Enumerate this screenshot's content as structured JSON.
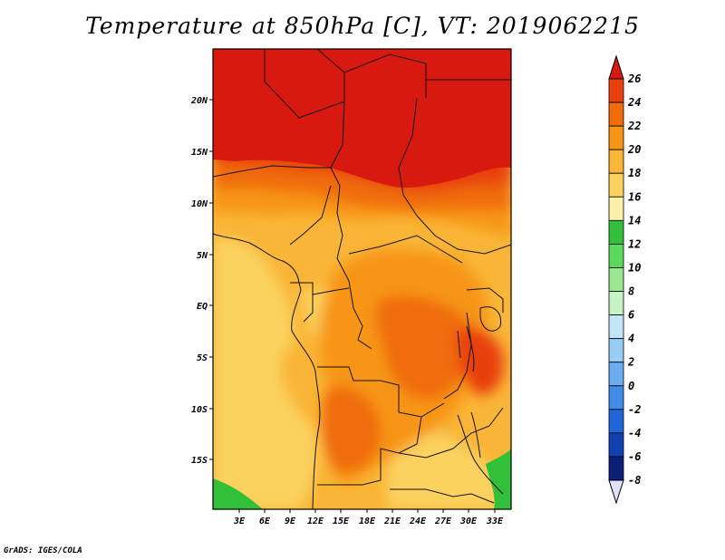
{
  "title": "Temperature at 850hPa [C], VT: 2019062215",
  "credit": "GrADS: IGES/COLA",
  "map": {
    "lon_range": [
      0,
      35
    ],
    "lat_range": [
      -20,
      25
    ],
    "lat_ticks": [
      "20N",
      "15N",
      "10N",
      "5N",
      "EQ",
      "5S",
      "10S",
      "15S"
    ],
    "lon_ticks": [
      "3E",
      "6E",
      "9E",
      "12E",
      "15E",
      "18E",
      "21E",
      "24E",
      "27E",
      "30E",
      "33E"
    ]
  },
  "colorbar": {
    "labels": [
      "26",
      "24",
      "22",
      "20",
      "18",
      "16",
      "14",
      "12",
      "10",
      "8",
      "6",
      "4",
      "2",
      "0",
      "-2",
      "-4",
      "-6",
      "-8"
    ],
    "colors": [
      "#d7190f",
      "#e8400c",
      "#f06c0c",
      "#f79514",
      "#f9b537",
      "#fbd25f",
      "#fdf0a8",
      "#32c03a",
      "#5bd95b",
      "#9ae992",
      "#c6f4c5",
      "#c3e6f7",
      "#98cdf3",
      "#6baef0",
      "#3f8de9",
      "#1f66d8",
      "#1141b2",
      "#0b1e78",
      "#060a57"
    ],
    "top_cap_color": "#d7190f",
    "bottom_cap_color": "#e0e2f8"
  }
}
